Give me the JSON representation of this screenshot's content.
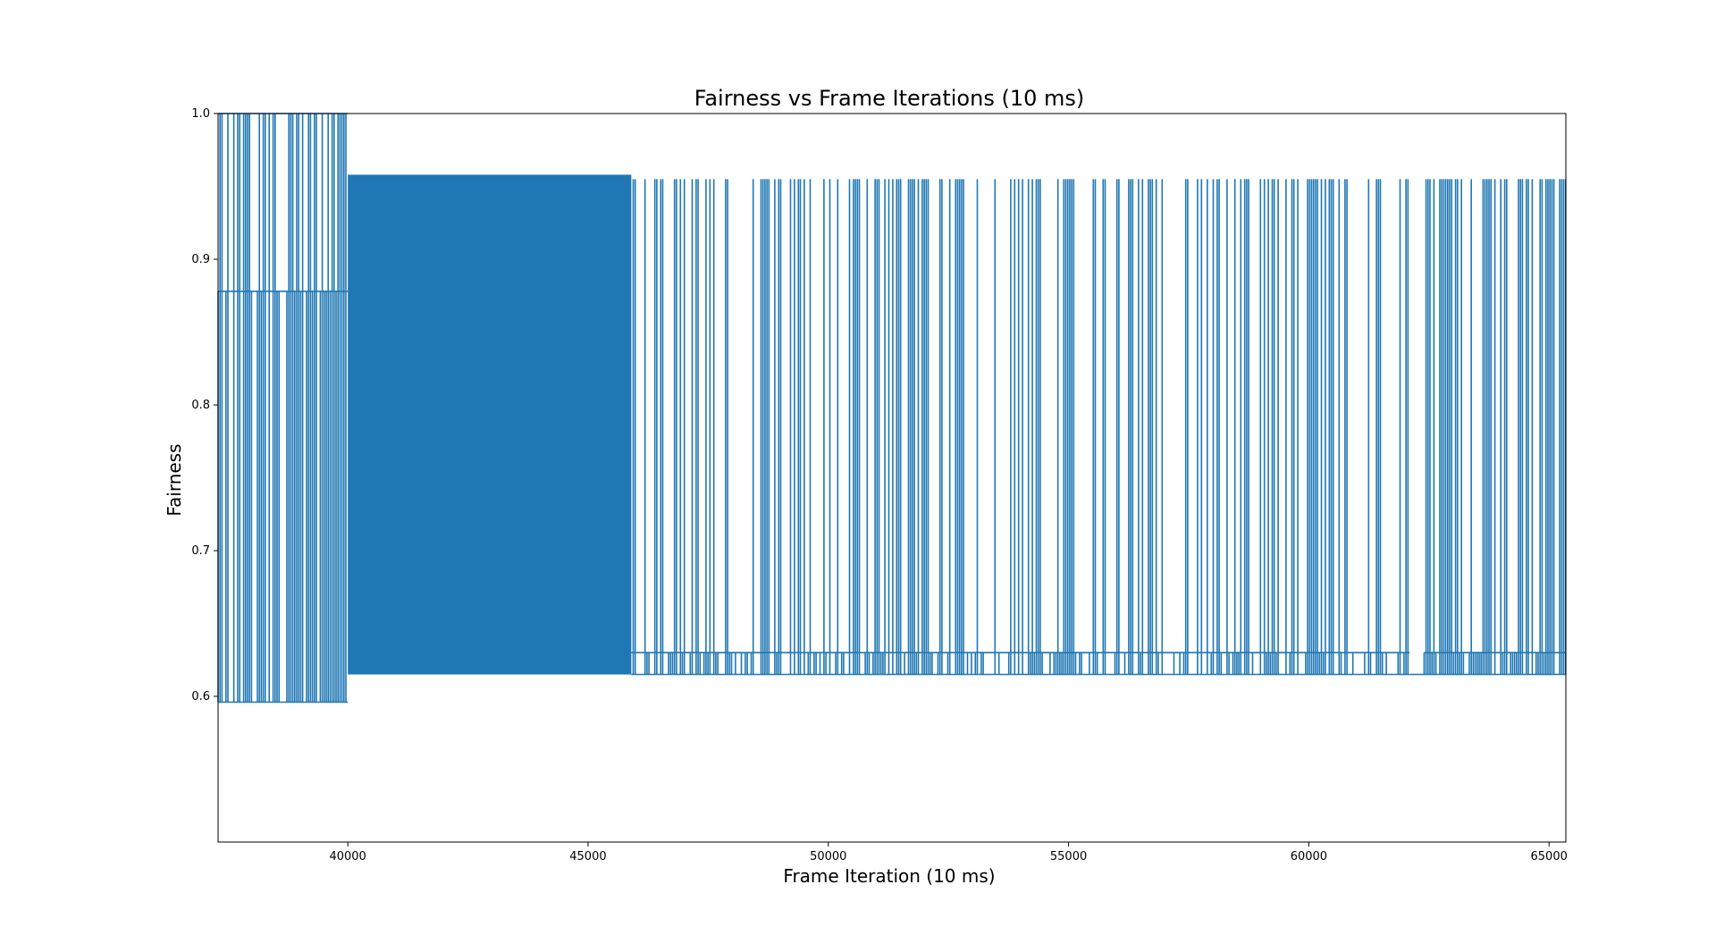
{
  "chart_data": {
    "type": "line",
    "title": "Fairness vs Frame Iterations (10 ms)",
    "xlabel": "Frame Iteration (10 ms)",
    "ylabel": "Fairness",
    "xlim": [
      37300,
      65350
    ],
    "ylim": [
      0.5,
      1.0
    ],
    "xticks": [
      40000,
      45000,
      50000,
      55000,
      60000,
      65000
    ],
    "xtick_labels": [
      "40000",
      "45000",
      "50000",
      "55000",
      "60000",
      "65000"
    ],
    "yticks": [
      0.6,
      0.7,
      0.8,
      0.9,
      1.0
    ],
    "ytick_labels": [
      "0.6",
      "0.7",
      "0.8",
      "0.9",
      "1.0"
    ],
    "grid": false,
    "legend": "none",
    "series": [
      {
        "color": "#1f77b4",
        "description_of_segments": "oscillating values",
        "segments": [
          {
            "x": [
              37300,
              40000
            ],
            "high": 1.0,
            "mid": 0.878,
            "low": 0.596,
            "density": 0.55
          },
          {
            "x": [
              40000,
              45900
            ],
            "high": 0.958,
            "mid": null,
            "low": 0.615,
            "density": 1.0
          },
          {
            "x": [
              45900,
              62100
            ],
            "high": 0.955,
            "mid": 0.63,
            "low": 0.615,
            "density": 0.35
          },
          {
            "x": [
              62100,
              62400
            ],
            "high": 0.63,
            "mid": null,
            "low": 0.615,
            "density": 0.0
          },
          {
            "x": [
              62400,
              65350
            ],
            "high": 0.955,
            "mid": 0.63,
            "low": 0.615,
            "density": 0.5
          }
        ]
      }
    ]
  }
}
